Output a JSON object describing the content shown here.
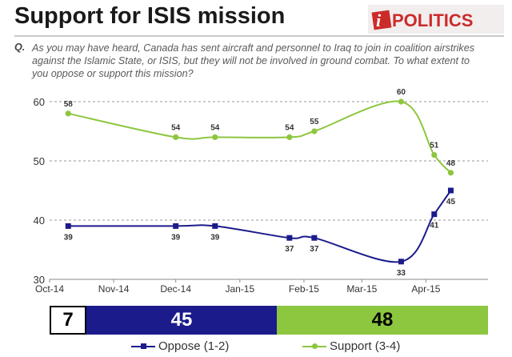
{
  "title": "Support for ISIS mission",
  "logo": {
    "text": "POLITICS",
    "prefix": "i"
  },
  "question": {
    "prefix": "Q.",
    "text": "As you may have heard, Canada has sent aircraft and personnel to Iraq to join in coalition airstrikes against the Islamic State, or ISIS, but they will not be involved in ground combat. To what extent to you oppose or support this mission?"
  },
  "colors": {
    "oppose": "#1c1b8c",
    "support": "#8dc63f",
    "grid": "#9a9a9a"
  },
  "chart_data": {
    "type": "line",
    "y_ticks": [
      "60",
      "50",
      "40",
      "30"
    ],
    "x_ticks": [
      "Oct-14",
      "Nov-14",
      "Dec-14",
      "Jan-15",
      "Feb-15",
      "Mar-15",
      "Apr-15"
    ],
    "ylim": [
      30,
      60
    ],
    "grid": true,
    "legend_position": "bottom",
    "series": [
      {
        "name": "Support (3-4)",
        "color": "#8dc63f",
        "points": [
          {
            "date": "2014-10-10",
            "value": 58
          },
          {
            "date": "2014-12-01",
            "value": 54
          },
          {
            "date": "2014-12-20",
            "value": 54
          },
          {
            "date": "2015-01-25",
            "value": 54
          },
          {
            "date": "2015-02-06",
            "value": 55
          },
          {
            "date": "2015-03-20",
            "value": 60
          },
          {
            "date": "2015-04-05",
            "value": 51
          },
          {
            "date": "2015-04-13",
            "value": 48
          }
        ]
      },
      {
        "name": "Oppose (1-2)",
        "color": "#1c1b8c",
        "points": [
          {
            "date": "2014-10-10",
            "value": 39
          },
          {
            "date": "2014-12-01",
            "value": 39
          },
          {
            "date": "2014-12-20",
            "value": 39
          },
          {
            "date": "2015-01-25",
            "value": 37
          },
          {
            "date": "2015-02-06",
            "value": 37
          },
          {
            "date": "2015-03-20",
            "value": 33
          },
          {
            "date": "2015-04-05",
            "value": 41
          },
          {
            "date": "2015-04-13",
            "value": 45
          }
        ]
      }
    ],
    "summary_bar": {
      "dk": "7",
      "oppose": "45",
      "support": "48"
    }
  },
  "legend": {
    "oppose": "Oppose (1-2)",
    "support": "Support (3-4)"
  }
}
